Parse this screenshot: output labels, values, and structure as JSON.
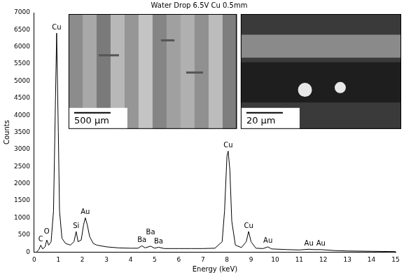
{
  "chart_data": {
    "type": "line",
    "title": "Water Drop 6.5V Cu 0.5mm",
    "x_label": "Energy (keV)",
    "y_label": "Counts",
    "x": [
      0.1,
      0.2,
      0.27,
      0.35,
      0.45,
      0.52,
      0.6,
      0.7,
      0.8,
      0.87,
      0.93,
      1.0,
      1.05,
      1.15,
      1.3,
      1.5,
      1.65,
      1.74,
      1.82,
      1.95,
      2.05,
      2.12,
      2.2,
      2.3,
      2.45,
      2.6,
      3.0,
      3.5,
      4.0,
      4.3,
      4.47,
      4.6,
      4.83,
      5.0,
      5.16,
      5.4,
      6.0,
      6.5,
      7.0,
      7.5,
      7.8,
      7.9,
      8.0,
      8.05,
      8.12,
      8.2,
      8.35,
      8.6,
      8.8,
      8.9,
      9.0,
      9.2,
      9.5,
      9.7,
      9.85,
      10.5,
      11.0,
      11.4,
      11.6,
      11.9,
      12.5,
      13.0,
      14.0,
      15.0
    ],
    "values": [
      0,
      80,
      200,
      90,
      150,
      350,
      200,
      300,
      1200,
      4000,
      6400,
      3500,
      1200,
      400,
      250,
      200,
      300,
      600,
      300,
      350,
      800,
      1000,
      800,
      450,
      250,
      200,
      150,
      120,
      110,
      110,
      180,
      120,
      170,
      110,
      140,
      100,
      100,
      100,
      100,
      110,
      300,
      1200,
      2800,
      2950,
      2400,
      900,
      200,
      130,
      300,
      600,
      300,
      110,
      100,
      150,
      90,
      70,
      60,
      80,
      70,
      70,
      40,
      30,
      20,
      10
    ],
    "color": "#000000",
    "xlim": [
      0,
      15
    ],
    "xticks": [
      0,
      1,
      2,
      3,
      4,
      5,
      6,
      7,
      8,
      9,
      10,
      11,
      12,
      13,
      14,
      15
    ],
    "ylim": [
      0,
      7000
    ],
    "yticks": [
      0,
      500,
      1000,
      1500,
      2000,
      2500,
      3000,
      3500,
      4000,
      4500,
      5000,
      5500,
      6000,
      6500,
      7000
    ],
    "grid": false,
    "annotations": [
      {
        "text": "C",
        "x": 0.27
      },
      {
        "text": "O",
        "x": 0.52
      },
      {
        "text": "Cu",
        "x": 0.93
      },
      {
        "text": "Si",
        "x": 1.74
      },
      {
        "text": "Au",
        "x": 2.12
      },
      {
        "text": "Ba",
        "x": 4.47
      },
      {
        "text": "Ba",
        "x": 4.83
      },
      {
        "text": "Ba",
        "x": 5.16
      },
      {
        "text": "Cu",
        "x": 8.05
      },
      {
        "text": "Cu",
        "x": 8.9
      },
      {
        "text": "Au",
        "x": 9.7
      },
      {
        "text": "Au",
        "x": 11.4
      },
      {
        "text": "Au",
        "x": 11.9
      }
    ],
    "insets": [
      {
        "scale_bar": "500 µm"
      },
      {
        "scale_bar": "20 µm"
      }
    ]
  }
}
